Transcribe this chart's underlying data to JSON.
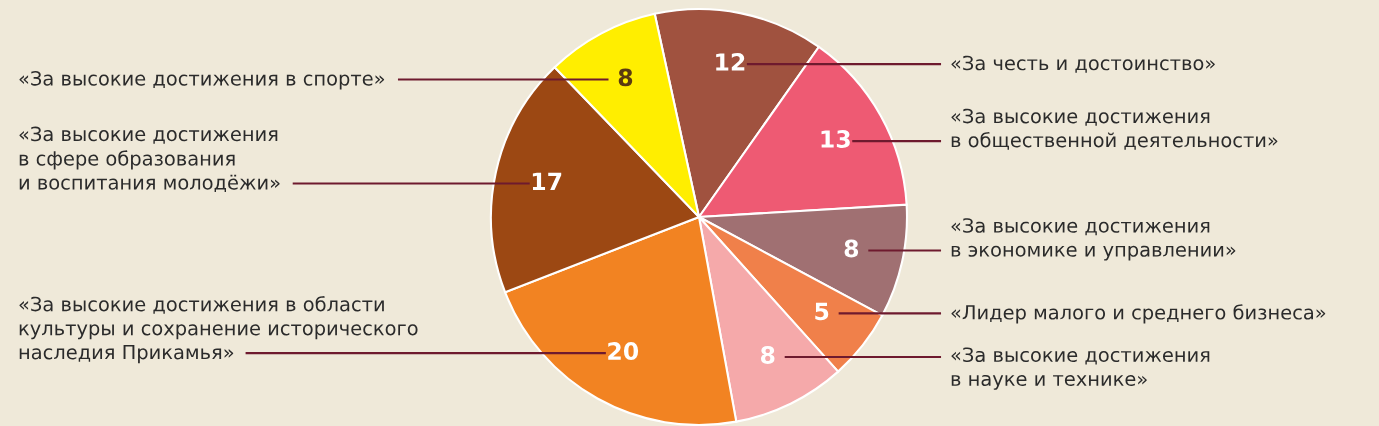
{
  "chart_data": {
    "type": "pie",
    "categories": [
      "«За честь и достоинство»",
      "«За высокие достижения\nв общественной деятельности»",
      "«За высокие достижения\nв экономике и управлении»",
      "«Лидер малого и среднего бизнеса»",
      "«За высокие достижения\nв науке и технике»",
      "«За высокие достижения в области\nкультуры и сохранение исторического\nнаследия Прикамья»",
      "«За высокие достижения\nв сфере образования\nи воспитания молодёжи»",
      "«За высокие достижения в спорте»"
    ],
    "values": [
      12,
      13,
      8,
      5,
      8,
      20,
      17,
      8
    ],
    "colors": [
      "#a0523f",
      "#ee5a73",
      "#a07072",
      "#f0804a",
      "#f5a9aa",
      "#f28322",
      "#9c4813",
      "#ffee00"
    ],
    "data_labels": true
  }
}
